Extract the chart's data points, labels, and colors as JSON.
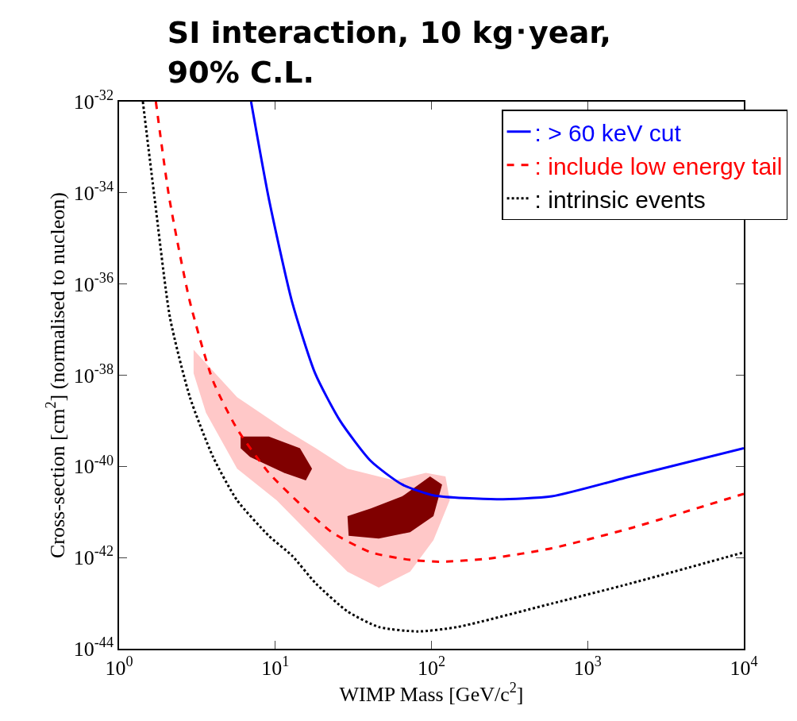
{
  "chart_data": {
    "type": "line",
    "title": "SI interaction, 10 kg･year,\n90% C.L.",
    "xlabel": "WIMP Mass [GeV/c$^{2}$]",
    "ylabel": "Cross-section [cm$^{2}$] (normalised to nucleon)",
    "log": "xy",
    "xlim": [
      1,
      10000
    ],
    "ylim": [
      1e-44,
      1e-32
    ],
    "xticks": [
      {
        "value": 1,
        "label": "10$^{0}$"
      },
      {
        "value": 10,
        "label": "10$^{1}$"
      },
      {
        "value": 100,
        "label": "10$^{2}$"
      },
      {
        "value": 1000,
        "label": "10$^{3}$"
      },
      {
        "value": 10000,
        "label": "10$^{4}$"
      }
    ],
    "yticks": [
      {
        "value": 1e-44,
        "label": "10$^{-44}$"
      },
      {
        "value": 1e-42,
        "label": "10$^{-42}$"
      },
      {
        "value": 1e-40,
        "label": "10$^{-40}$"
      },
      {
        "value": 1e-38,
        "label": "10$^{-38}$"
      },
      {
        "value": 1e-36,
        "label": "10$^{-36}$"
      },
      {
        "value": 1e-34,
        "label": "10$^{-34}$"
      },
      {
        "value": 1e-32,
        "label": "10$^{-32}$"
      }
    ],
    "legend": "top right",
    "marker": "none",
    "series": [
      {
        "type": "area",
        "color": "#ffc8c8",
        "x": [
          3.0,
          5.7,
          11.4,
          18.2,
          29,
          58,
          92,
          123,
          131,
          103,
          73,
          46,
          29,
          18.2,
          10.2,
          5.7,
          3.6,
          3.0
        ],
        "values": [
          3.6e-38,
          3.3e-39,
          6.6e-40,
          2.5e-40,
          8.9e-41,
          4.9e-41,
          7.2e-41,
          6e-41,
          1.8e-41,
          2.4e-42,
          4.9e-43,
          2.2e-43,
          4.9e-43,
          2.4e-42,
          1.8e-41,
          8.9e-41,
          1.5e-39,
          1.1e-38
        ]
      },
      {
        "type": "area",
        "color": "#800000",
        "x": [
          6.0,
          9.1,
          14.4,
          17.2,
          15.7,
          11.4,
          6.9,
          6.0
        ],
        "values": [
          4.5e-40,
          4.5e-40,
          2.5e-40,
          8.9e-41,
          4.9e-41,
          7.2e-41,
          1.6e-40,
          2.5e-40
        ]
      },
      {
        "type": "area",
        "color": "#800000",
        "x": [
          29,
          41,
          65,
          98,
          117,
          103,
          73,
          46,
          29.5
        ],
        "values": [
          8.1e-42,
          1.2e-41,
          2.2e-41,
          6e-41,
          4e-41,
          8.1e-42,
          3.6e-42,
          2.6e-42,
          3e-42
        ]
      },
      {
        "name": ": > 60 keV cut",
        "color": "#0000ff",
        "line_style": "solid",
        "x": [
          7.0,
          9.1,
          12.8,
          18,
          26,
          41,
          65,
          104,
          262,
          590,
          1880,
          10000
        ],
        "values": [
          1e-32,
          7.4e-35,
          4.1e-37,
          1.1e-38,
          1e-39,
          1.3e-40,
          4e-41,
          2.3e-41,
          1.9e-41,
          2.2e-41,
          6e-41,
          2.5e-40
        ]
      },
      {
        "name": ": include low energy tail",
        "color": "#ff0000",
        "line_style": "dashed",
        "x": [
          1.72,
          2.1,
          2.84,
          4.0,
          5.7,
          9.1,
          14.4,
          23,
          41,
          73,
          116,
          233,
          590,
          1880,
          10000
        ],
        "values": [
          1e-32,
          7.4e-35,
          4.1e-37,
          7.4e-39,
          6.6e-40,
          7.2e-41,
          1.5e-41,
          3.6e-42,
          1.3e-42,
          8.9e-43,
          8.1e-43,
          9.5e-43,
          1.6e-42,
          4.4e-42,
          2.5e-41
        ]
      },
      {
        "name": ": intrinsic events",
        "color": "#000000",
        "line_style": "dotted",
        "x": [
          1.42,
          1.69,
          2.12,
          2.84,
          4.0,
          5.7,
          9.1,
          12.8,
          18.2,
          29,
          46,
          82,
          147,
          590,
          1880,
          10000
        ],
        "values": [
          1e-32,
          7.4e-35,
          1.8e-37,
          3.3e-39,
          1.6e-40,
          1.8e-41,
          3e-42,
          1.1e-42,
          2.7e-43,
          6.6e-44,
          3e-44,
          2.4e-44,
          3e-44,
          9.8e-44,
          2.7e-43,
          1.3e-42
        ]
      }
    ]
  }
}
